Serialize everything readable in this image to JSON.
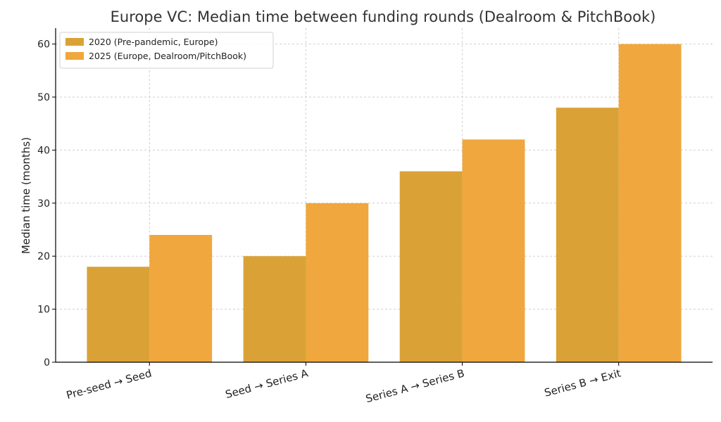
{
  "chart_data": {
    "type": "bar",
    "title": "Europe VC: Median time between funding rounds (Dealroom & PitchBook)",
    "xlabel": "",
    "ylabel": "Median time (months)",
    "ylim": [
      0,
      63
    ],
    "yticks": [
      0,
      10,
      20,
      30,
      40,
      50,
      60
    ],
    "grid": true,
    "legend_position": "top-left",
    "categories": [
      "Pre-seed → Seed",
      "Seed → Series A",
      "Series A → Series B",
      "Series B → Exit"
    ],
    "series": [
      {
        "name": "2020 (Pre-pandemic, Europe)",
        "values": [
          18,
          20,
          36,
          48
        ],
        "color": "#DAA236"
      },
      {
        "name": "2025 (Europe, Dealroom/PitchBook)",
        "values": [
          24,
          30,
          42,
          60
        ],
        "color": "#F0A73D"
      }
    ]
  }
}
